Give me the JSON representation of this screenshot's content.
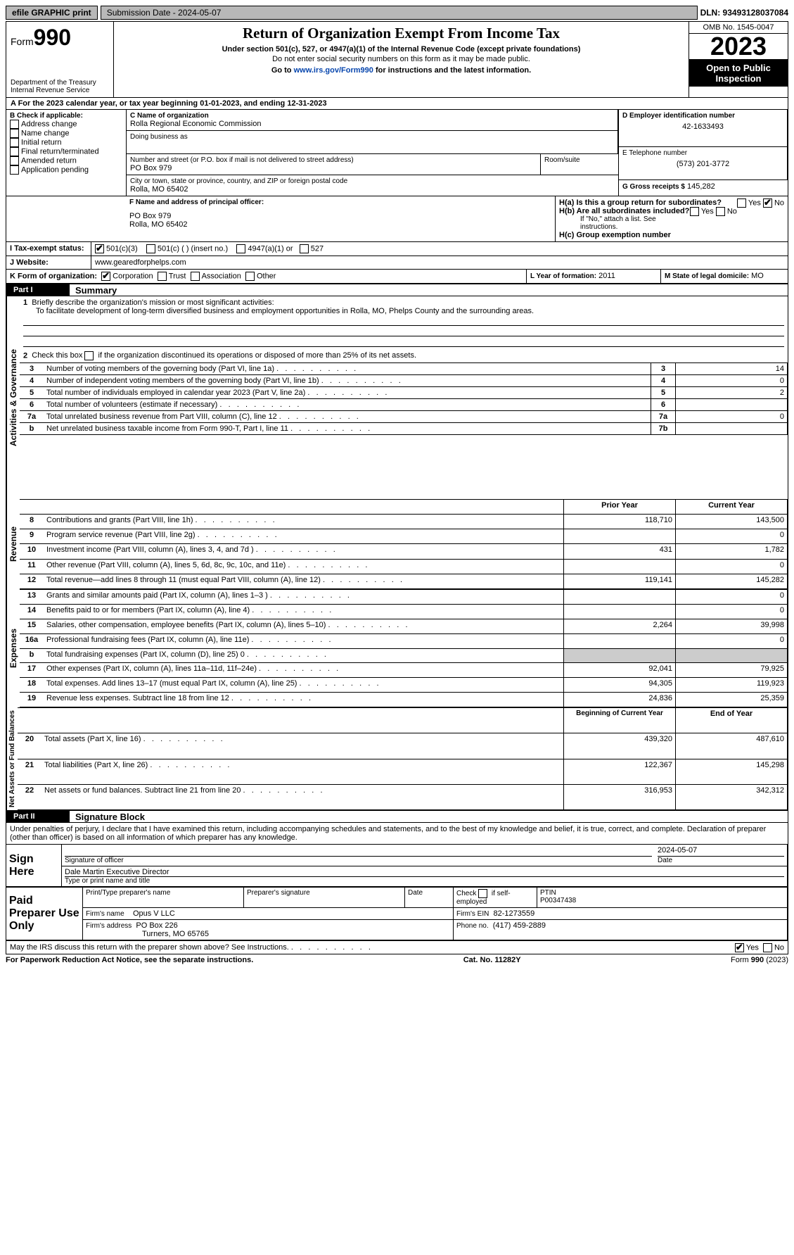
{
  "topbar": {
    "efile": "efile GRAPHIC print",
    "submission": "Submission Date - 2024-05-07",
    "dln": "DLN: 93493128037084"
  },
  "header": {
    "form_prefix": "Form",
    "form_num": "990",
    "dept": "Department of the Treasury\nInternal Revenue Service",
    "title": "Return of Organization Exempt From Income Tax",
    "sub1": "Under section 501(c), 527, or 4947(a)(1) of the Internal Revenue Code (except private foundations)",
    "sub2": "Do not enter social security numbers on this form as it may be made public.",
    "sub3_a": "Go to ",
    "sub3_link": "www.irs.gov/Form990",
    "sub3_b": " for instructions and the latest information.",
    "omb": "OMB No. 1545-0047",
    "year": "2023",
    "insp": "Open to Public Inspection"
  },
  "period": {
    "text_a": "A For the 2023 calendar year, or tax year beginning ",
    "begin": "01-01-2023",
    "text_b": ", and ending ",
    "end": "12-31-2023"
  },
  "boxB": {
    "label": "B Check if applicable:",
    "items": [
      "Address change",
      "Name change",
      "Initial return",
      "Final return/terminated",
      "Amended return",
      "Application pending"
    ]
  },
  "boxC": {
    "name_lbl": "C Name of organization",
    "name": "Rolla Regional Economic Commission",
    "dba_lbl": "Doing business as",
    "dba": "",
    "street_lbl": "Number and street (or P.O. box if mail is not delivered to street address)",
    "street": "PO Box 979",
    "room_lbl": "Room/suite",
    "room": "",
    "city_lbl": "City or town, state or province, country, and ZIP or foreign postal code",
    "city": "Rolla, MO  65402"
  },
  "boxD": {
    "lbl": "D Employer identification number",
    "val": "42-1633493"
  },
  "boxE": {
    "lbl": "E Telephone number",
    "val": "(573) 201-3772"
  },
  "boxG": {
    "lbl": "G Gross receipts $",
    "val": "145,282"
  },
  "boxF": {
    "lbl": "F  Name and address of principal officer:",
    "l1": "PO Box 979",
    "l2": "Rolla, MO  65402"
  },
  "boxH": {
    "a_lbl": "H(a)  Is this a group return for subordinates?",
    "a_yes": false,
    "a_no": true,
    "b_lbl": "H(b)  Are all subordinates included?",
    "b_yes": false,
    "b_no": false,
    "b_note": "If \"No,\" attach a list. See instructions.",
    "c_lbl": "H(c)  Group exemption number",
    "c_val": ""
  },
  "boxI": {
    "lbl": "I  Tax-exempt status:",
    "c3": true,
    "c_other": false,
    "c_other_lbl": "501(c) (  ) (insert no.)",
    "a4947": false,
    "a4947_lbl": "4947(a)(1) or",
    "s527": false,
    "s527_lbl": "527",
    "c3_lbl": "501(c)(3)"
  },
  "boxJ": {
    "lbl": "J  Website:",
    "val": "www.gearedforphelps.com"
  },
  "boxK": {
    "lbl": "K Form of organization:",
    "corp": true,
    "corp_lbl": "Corporation",
    "trust": false,
    "trust_lbl": "Trust",
    "assoc": false,
    "assoc_lbl": "Association",
    "other": false,
    "other_lbl": "Other"
  },
  "boxL": {
    "lbl": "L Year of formation:",
    "val": "2011"
  },
  "boxM": {
    "lbl": "M State of legal domicile:",
    "val": "MO"
  },
  "part1": {
    "hdr": "Part I",
    "title": "Summary"
  },
  "summary": {
    "l1_lbl": "Briefly describe the organization's mission or most significant activities:",
    "l1_val": "To facilitate development of long-term diversified business and employment opportunities in Rolla, MO, Phelps County and the surrounding areas.",
    "l2": "Check this box          if the organization discontinued its operations or disposed of more than 25% of its net assets.",
    "rows_gov": [
      {
        "n": "3",
        "t": "Number of voting members of the governing body (Part VI, line 1a)",
        "box": "3",
        "v": "14"
      },
      {
        "n": "4",
        "t": "Number of independent voting members of the governing body (Part VI, line 1b)",
        "box": "4",
        "v": "0"
      },
      {
        "n": "5",
        "t": "Total number of individuals employed in calendar year 2023 (Part V, line 2a)",
        "box": "5",
        "v": "2"
      },
      {
        "n": "6",
        "t": "Total number of volunteers (estimate if necessary)",
        "box": "6",
        "v": ""
      },
      {
        "n": "7a",
        "t": "Total unrelated business revenue from Part VIII, column (C), line 12",
        "box": "7a",
        "v": "0"
      },
      {
        "n": "b",
        "t": "Net unrelated business taxable income from Form 990-T, Part I, line 11",
        "box": "7b",
        "v": ""
      }
    ],
    "col_prior": "Prior Year",
    "col_curr": "Current Year",
    "rev_rows": [
      {
        "n": "8",
        "t": "Contributions and grants (Part VIII, line 1h)",
        "p": "118,710",
        "c": "143,500"
      },
      {
        "n": "9",
        "t": "Program service revenue (Part VIII, line 2g)",
        "p": "",
        "c": "0"
      },
      {
        "n": "10",
        "t": "Investment income (Part VIII, column (A), lines 3, 4, and 7d )",
        "p": "431",
        "c": "1,782"
      },
      {
        "n": "11",
        "t": "Other revenue (Part VIII, column (A), lines 5, 6d, 8c, 9c, 10c, and 11e)",
        "p": "",
        "c": "0"
      },
      {
        "n": "12",
        "t": "Total revenue—add lines 8 through 11 (must equal Part VIII, column (A), line 12)",
        "p": "119,141",
        "c": "145,282"
      }
    ],
    "exp_rows": [
      {
        "n": "13",
        "t": "Grants and similar amounts paid (Part IX, column (A), lines 1–3 )",
        "p": "",
        "c": "0"
      },
      {
        "n": "14",
        "t": "Benefits paid to or for members (Part IX, column (A), line 4)",
        "p": "",
        "c": "0"
      },
      {
        "n": "15",
        "t": "Salaries, other compensation, employee benefits (Part IX, column (A), lines 5–10)",
        "p": "2,264",
        "c": "39,998"
      },
      {
        "n": "16a",
        "t": "Professional fundraising fees (Part IX, column (A), line 11e)",
        "p": "",
        "c": "0"
      },
      {
        "n": "b",
        "t": "Total fundraising expenses (Part IX, column (D), line 25) 0",
        "p": "GREY",
        "c": "GREY"
      },
      {
        "n": "17",
        "t": "Other expenses (Part IX, column (A), lines 11a–11d, 11f–24e)",
        "p": "92,041",
        "c": "79,925"
      },
      {
        "n": "18",
        "t": "Total expenses. Add lines 13–17 (must equal Part IX, column (A), line 25)",
        "p": "94,305",
        "c": "119,923"
      },
      {
        "n": "19",
        "t": "Revenue less expenses. Subtract line 18 from line 12",
        "p": "24,836",
        "c": "25,359"
      }
    ],
    "net_hdr_p": "Beginning of Current Year",
    "net_hdr_c": "End of Year",
    "net_rows": [
      {
        "n": "20",
        "t": "Total assets (Part X, line 16)",
        "p": "439,320",
        "c": "487,610"
      },
      {
        "n": "21",
        "t": "Total liabilities (Part X, line 26)",
        "p": "122,367",
        "c": "145,298"
      },
      {
        "n": "22",
        "t": "Net assets or fund balances. Subtract line 21 from line 20",
        "p": "316,953",
        "c": "342,312"
      }
    ],
    "side_gov": "Activities & Governance",
    "side_rev": "Revenue",
    "side_exp": "Expenses",
    "side_net": "Net Assets or Fund Balances"
  },
  "part2": {
    "hdr": "Part II",
    "title": "Signature Block",
    "decl": "Under penalties of perjury, I declare that I have examined this return, including accompanying schedules and statements, and to the best of my knowledge and belief, it is true, correct, and complete. Declaration of preparer (other than officer) is based on all information of which preparer has any knowledge."
  },
  "sign": {
    "here": "Sign Here",
    "sig_lbl": "Signature of officer",
    "date_lbl": "Date",
    "date": "2024-05-07",
    "name": "Dale Martin  Executive Director",
    "name_lbl": "Type or print name and title"
  },
  "paid": {
    "lbl": "Paid Preparer Use Only",
    "h1": "Print/Type preparer's name",
    "h2": "Preparer's signature",
    "h3": "Date",
    "h4": "Check         if self-employed",
    "h5": "PTIN",
    "ptin": "P00347438",
    "self": false,
    "firm_lbl": "Firm's name",
    "firm": "Opus V LLC",
    "ein_lbl": "Firm's EIN",
    "ein": "82-1273559",
    "addr_lbl": "Firm's address",
    "addr1": "PO Box 226",
    "addr2": "Turners, MO  65765",
    "phone_lbl": "Phone no.",
    "phone": "(417) 459-2889"
  },
  "discuss": {
    "t": "May the IRS discuss this return with the preparer shown above? See Instructions.",
    "yes": true,
    "no": false
  },
  "footer": {
    "l": "For Paperwork Reduction Act Notice, see the separate instructions.",
    "c": "Cat. No. 11282Y",
    "r": "Form 990 (2023)"
  }
}
